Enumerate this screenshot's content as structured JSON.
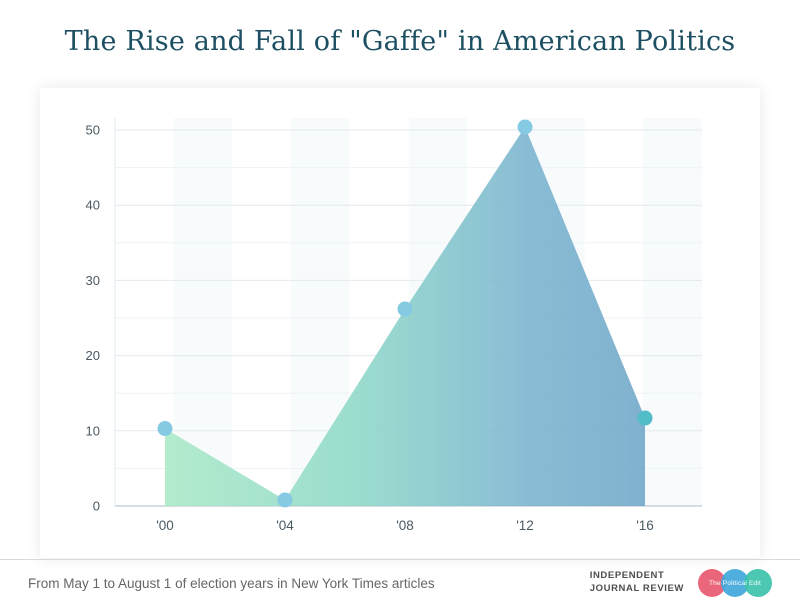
{
  "title": "The Rise and Fall of \"Gaffe\" in American Politics",
  "colors": {
    "title": "#1d4f63",
    "axis_label": "#4c5a63",
    "caption": "#666666",
    "brand_text": "#4d4d4d"
  },
  "chart_data": {
    "type": "area",
    "title": "The Rise and Fall of \"Gaffe\" in American Politics",
    "x": [
      "'00",
      "'04",
      "'08",
      "'12",
      "'16"
    ],
    "values": [
      10.3,
      0.8,
      26.2,
      50.4,
      11.7
    ],
    "xlabel": "",
    "ylabel": "",
    "ylim": [
      0,
      50
    ],
    "yticks": [
      0,
      10,
      20,
      30,
      40,
      50
    ],
    "minor_grid_step": 5,
    "grid": "horizontal major and minor, subtle vertical bands",
    "legend": "none",
    "colors": {
      "area_gradient": [
        {
          "offset": "0%",
          "color": "#a9e9c6"
        },
        {
          "offset": "40%",
          "color": "#8ed8c8"
        },
        {
          "offset": "75%",
          "color": "#7ab4cf"
        },
        {
          "offset": "100%",
          "color": "#6ea7c8"
        }
      ],
      "area_opacity": 0.88,
      "band": "#f2f7fa",
      "grid_major": "#e2eaef",
      "grid_minor": "#eef3f6",
      "baseline": "#c7d3da",
      "axis_line": "#dfe8ed",
      "point_colors": [
        "#86c9e2",
        "#86c9e2",
        "#86c9e2",
        "#86c9e2",
        "#52bdc9"
      ]
    }
  },
  "footer": {
    "caption": "From May 1 to August 1 of election years in New York Times articles",
    "brand_lines": [
      "INDEPENDENT",
      "JOURNAL REVIEW"
    ],
    "logo_text": "The Political Edit",
    "logo_colors": [
      "#e85a70",
      "#41a8db",
      "#3cc2ab"
    ]
  }
}
